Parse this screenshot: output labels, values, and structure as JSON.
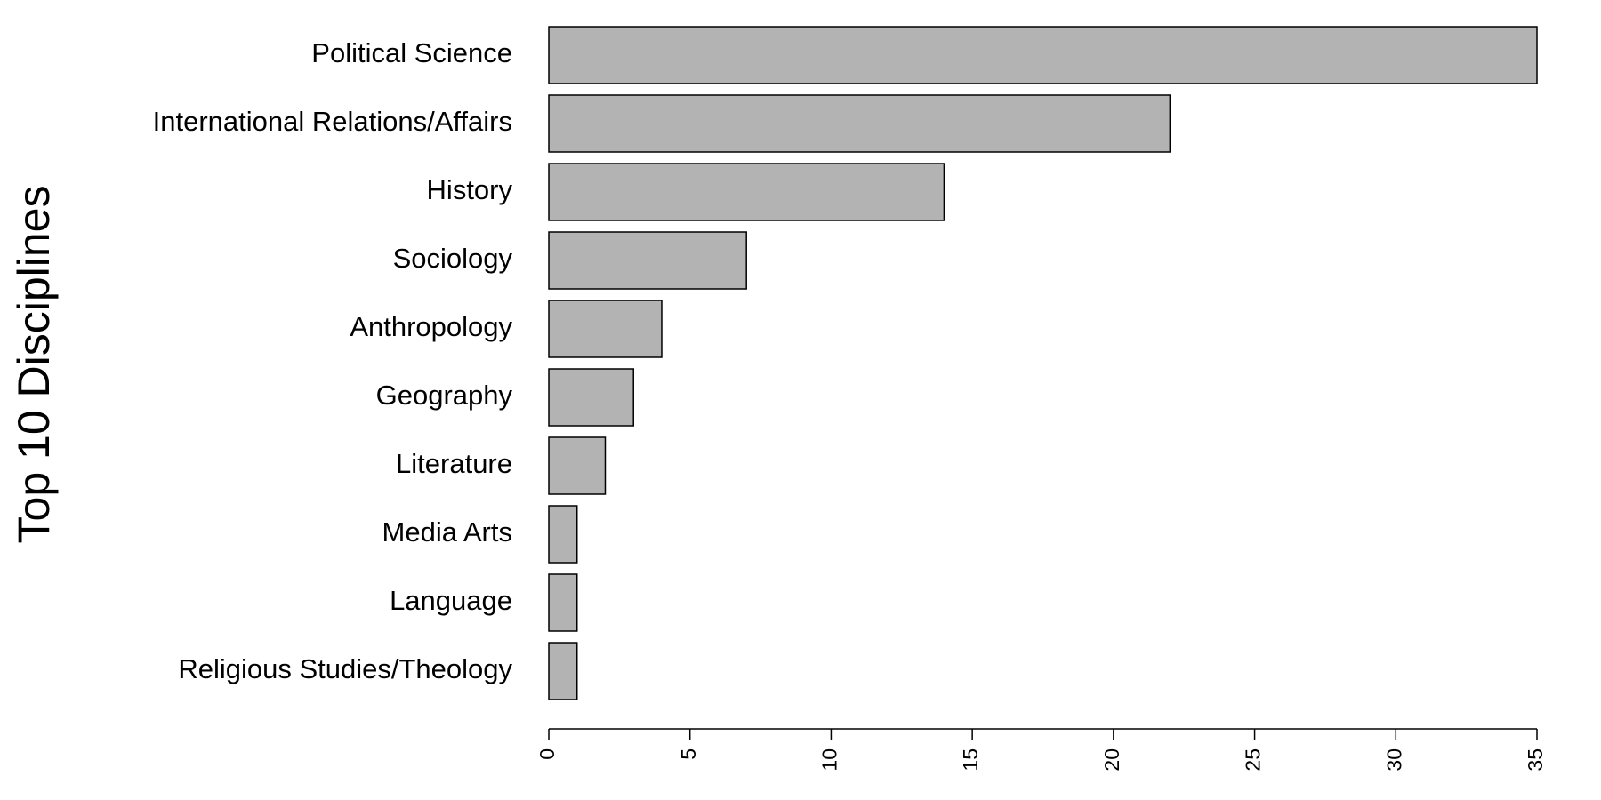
{
  "chart_data": {
    "type": "bar",
    "orientation": "horizontal",
    "title": "",
    "xlabel": "",
    "ylabel": "Top 10 Disciplines",
    "categories": [
      "Political Science",
      "International Relations/Affairs",
      "History",
      "Sociology",
      "Anthropology",
      "Geography",
      "Literature",
      "Media Arts",
      "Language",
      "Religious Studies/Theology"
    ],
    "values": [
      35,
      22,
      14,
      7,
      4,
      3,
      2,
      1,
      1,
      1
    ],
    "xlim": [
      0,
      35
    ],
    "xticks": [
      "0",
      "5",
      "10",
      "15",
      "20",
      "25",
      "30",
      "35"
    ],
    "xtick_values": [
      0,
      5,
      10,
      15,
      20,
      25,
      30,
      35
    ],
    "tick_label_rotation": "vertical",
    "grid": false,
    "legend": "none",
    "colors": {
      "bar_fill": "#b3b3b3",
      "bar_stroke": "#000000",
      "axis": "#000000",
      "background": "#ffffff"
    }
  }
}
